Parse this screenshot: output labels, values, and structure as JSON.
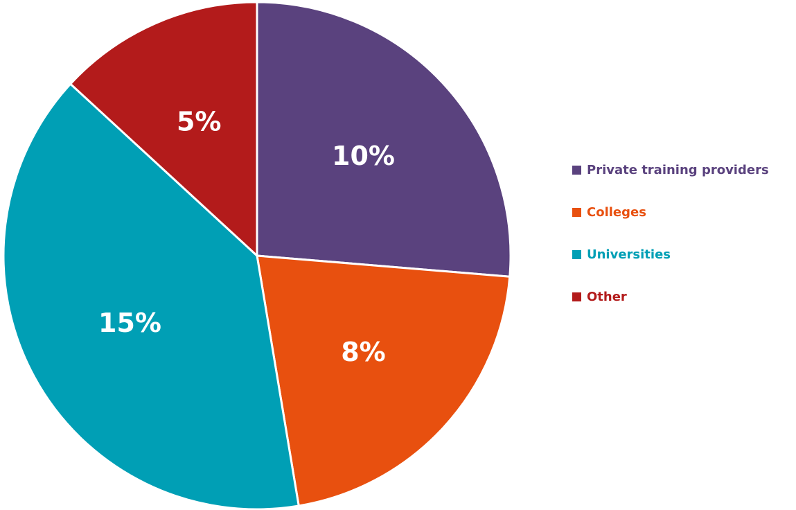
{
  "chart_data": {
    "type": "pie",
    "categories": [
      "Private training providers",
      "Colleges",
      "Universities",
      "Other"
    ],
    "values": [
      10,
      8,
      15,
      5
    ],
    "value_labels": [
      "10%",
      "8%",
      "15%",
      "5%"
    ],
    "colors": [
      "#5a427e",
      "#e8500f",
      "#009fb5",
      "#b31b1b"
    ],
    "legend": "right"
  }
}
